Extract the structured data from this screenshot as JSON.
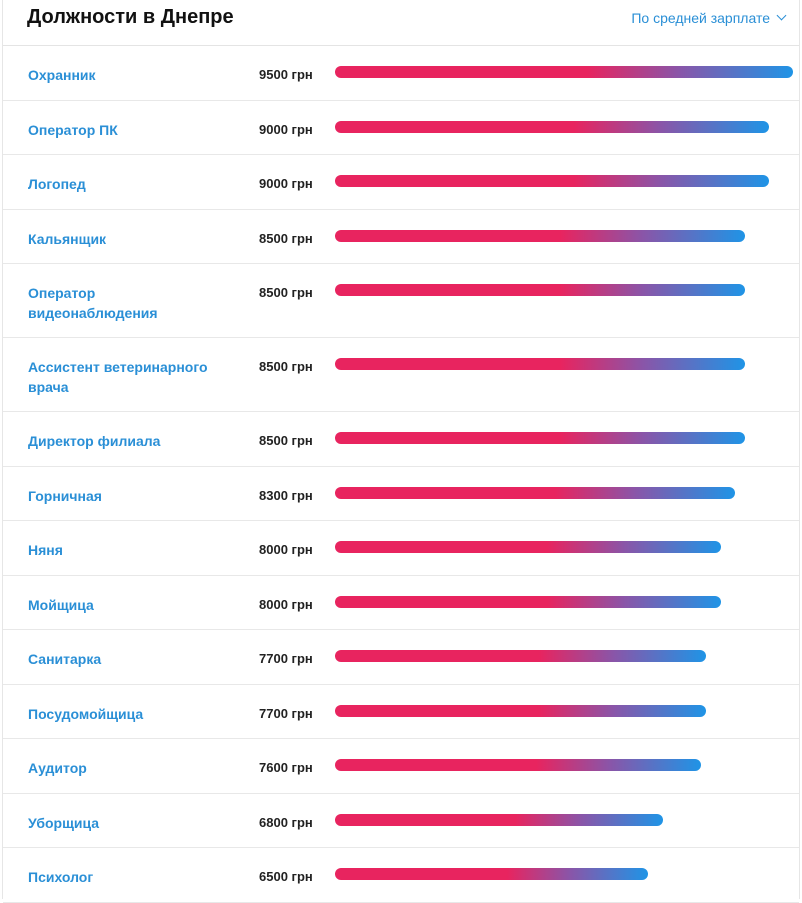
{
  "header": {
    "title": "Должности в Днепре",
    "sort_label": "По средней зарплате"
  },
  "chart_data": {
    "type": "bar",
    "currency": "грн",
    "max": 9500,
    "rows": [
      {
        "name": "Охранник",
        "value": 9500,
        "salary_label": "9500 грн"
      },
      {
        "name": "Оператор ПК",
        "value": 9000,
        "salary_label": "9000 грн"
      },
      {
        "name": "Логопед",
        "value": 9000,
        "salary_label": "9000 грн"
      },
      {
        "name": "Кальянщик",
        "value": 8500,
        "salary_label": "8500 грн"
      },
      {
        "name": "Оператор видеонаблюдения",
        "value": 8500,
        "salary_label": "8500 грн"
      },
      {
        "name": "Ассистент ветеринарного врача",
        "value": 8500,
        "salary_label": "8500 грн"
      },
      {
        "name": "Директор филиала",
        "value": 8500,
        "salary_label": "8500 грн"
      },
      {
        "name": "Горничная",
        "value": 8300,
        "salary_label": "8300 грн"
      },
      {
        "name": "Няня",
        "value": 8000,
        "salary_label": "8000 грн"
      },
      {
        "name": "Мойщица",
        "value": 8000,
        "salary_label": "8000 грн"
      },
      {
        "name": "Санитарка",
        "value": 7700,
        "salary_label": "7700 грн"
      },
      {
        "name": "Посудомойщица",
        "value": 7700,
        "salary_label": "7700 грн"
      },
      {
        "name": "Аудитор",
        "value": 7600,
        "salary_label": "7600 грн"
      },
      {
        "name": "Уборщица",
        "value": 6800,
        "salary_label": "6800 грн"
      },
      {
        "name": "Психолог",
        "value": 6500,
        "salary_label": "6500 грн"
      }
    ]
  },
  "colors": {
    "link": "#2a8fd6",
    "bar_start": "#e8245f",
    "bar_end": "#1f94e6"
  }
}
